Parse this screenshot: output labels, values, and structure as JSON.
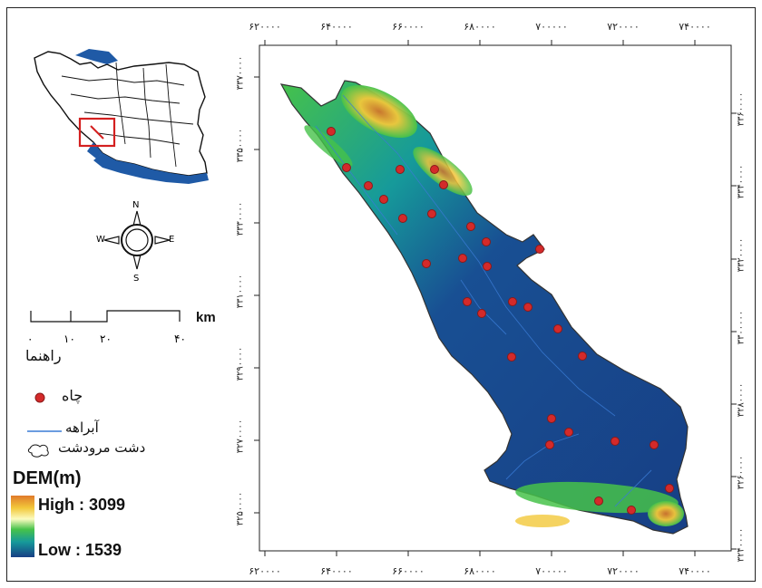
{
  "axes": {
    "x_ticks": [
      "۶۲۰۰۰۰",
      "۶۴۰۰۰۰",
      "۶۶۰۰۰۰",
      "۶۸۰۰۰۰",
      "۷۰۰۰۰۰",
      "۷۲۰۰۰۰",
      "۷۴۰۰۰۰"
    ],
    "y_ticks_left": [
      "۳۳۷۰۰۰۰",
      "۳۳۵۰۰۰۰",
      "۳۳۳۰۰۰۰",
      "۳۳۱۰۰۰۰",
      "۳۲۹۰۰۰۰",
      "۳۲۷۰۰۰۰",
      "۳۲۵۰۰۰۰"
    ],
    "y_ticks_right": [
      "۳۳۶۰۰۰۰",
      "۳۳۴۰۰۰۰",
      "۳۳۲۰۰۰۰",
      "۳۳۰۰۰۰۰",
      "۳۲۸۰۰۰۰",
      "۳۲۶۰۰۰۰",
      "۳۲۴۰۰۰۰"
    ]
  },
  "north_arrow": {
    "n": "N",
    "s": "S",
    "e": "E",
    "w": "W"
  },
  "scale_bar": {
    "labels": [
      "۰",
      "۱۰",
      "۲۰",
      "۴۰"
    ],
    "unit": "km"
  },
  "legend": {
    "title": "راهنما",
    "well_label": "چاه",
    "stream_label": "آبراهه",
    "plain_label": "دشت مرودشت",
    "dem_title": "DEM(m)",
    "dem_high": "High : 3099",
    "dem_low": "Low : 1539"
  },
  "colors": {
    "well": "#d42a2a",
    "stream": "#3a7bd5",
    "inset_sea": "#1f5aa6",
    "inset_box": "#d42020"
  }
}
